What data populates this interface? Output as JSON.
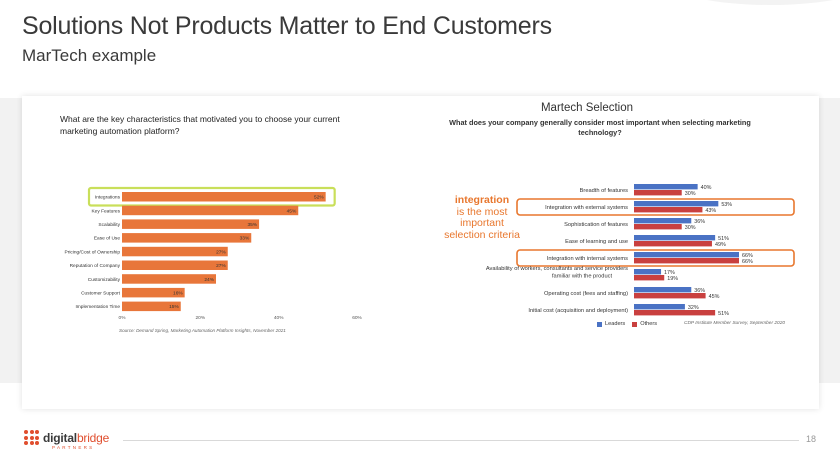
{
  "slide": {
    "title": "Solutions Not Products Matter to End Customers",
    "subtitle": "MarTech example",
    "page_number": "18"
  },
  "logo": {
    "brand_part1": "digital",
    "brand_part2": "bridge",
    "tagline": "PARTNERS"
  },
  "left_chart": {
    "question": "What are the key characteristics that motivated you to choose your current marketing automation platform?",
    "source": "Source: Demand Spring, Marketing Automation Platform Insights, November 2021"
  },
  "right_chart": {
    "title": "Martech Selection",
    "question": "What does your company generally consider most important when selecting marketing technology?",
    "callout_word": "integration",
    "callout_rest": "is the most important selection criteria",
    "legend": [
      "Leaders",
      "Others"
    ],
    "source": "CDP Institute Member Survey, September 2020"
  },
  "chart_data": [
    {
      "type": "bar",
      "orientation": "horizontal",
      "categories": [
        "Integrations",
        "Key Features",
        "Scalability",
        "Ease of Use",
        "Pricing/Cost of Ownership",
        "Reputation of Company",
        "Customizability",
        "Customer Support",
        "Implementation Time"
      ],
      "values": [
        52,
        45,
        35,
        33,
        27,
        27,
        24,
        16,
        15
      ],
      "value_labels": [
        "52%",
        "45%",
        "35%",
        "33%",
        "27%",
        "27%",
        "24%",
        "16%",
        "15%"
      ],
      "xticks": [
        "0%",
        "20%",
        "40%",
        "60%"
      ],
      "xlim": [
        0,
        60
      ],
      "highlight": "Integrations",
      "bar_color": "#e8763a",
      "highlight_color": "#c9df5a"
    },
    {
      "type": "bar",
      "orientation": "horizontal",
      "categories": [
        "Breadth of features",
        "Integration with external systems",
        "Sophistication of features",
        "Ease of learning and use",
        "Integration with internal systems",
        "Availability of workers, consultants and service providers familiar with the product",
        "Operating cost (fees and staffing)",
        "Initial cost (acquisition and deployment)"
      ],
      "series": [
        {
          "name": "Leaders",
          "color": "#4a72c4",
          "values": [
            40,
            53,
            36,
            51,
            66,
            17,
            36,
            32
          ],
          "labels": [
            "40%",
            "53%",
            "36%",
            "51%",
            "66%",
            "17%",
            "36%",
            "32%"
          ]
        },
        {
          "name": "Others",
          "color": "#c9403f",
          "values": [
            30,
            43,
            30,
            49,
            66,
            19,
            45,
            51
          ],
          "labels": [
            "30%",
            "43%",
            "30%",
            "49%",
            "66%",
            "19%",
            "45%",
            "51%"
          ]
        }
      ],
      "xlim": [
        0,
        100
      ],
      "highlighted": [
        "Integration with external systems",
        "Integration with internal systems"
      ],
      "highlight_color": "#e8772e"
    }
  ]
}
